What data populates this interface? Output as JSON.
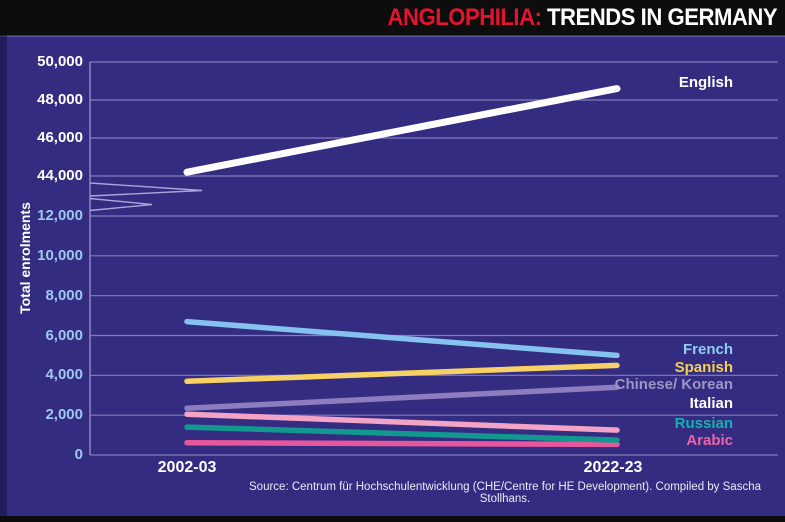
{
  "header": {
    "brand": "ANGLOPHILIA:",
    "title": "TRENDS IN GERMANY"
  },
  "chart_data": {
    "type": "line",
    "title": "ANGLOPHILIA: TRENDS IN GERMANY",
    "ylabel": "Total enrolments",
    "x_categories": [
      "2002-03",
      "2022-23"
    ],
    "axis_break": {
      "between": [
        12000,
        44000
      ]
    },
    "y_axis": {
      "upper_ticks": [
        {
          "value": 50000,
          "label": "50,000"
        },
        {
          "value": 48000,
          "label": "48,000"
        },
        {
          "value": 46000,
          "label": "46,000"
        },
        {
          "value": 44000,
          "label": "44,000"
        }
      ],
      "lower_ticks": [
        {
          "value": 12000,
          "label": "12,000"
        },
        {
          "value": 10000,
          "label": "10,000"
        },
        {
          "value": 8000,
          "label": "8,000"
        },
        {
          "value": 6000,
          "label": "6,000"
        },
        {
          "value": 4000,
          "label": "4,000"
        },
        {
          "value": 2000,
          "label": "2,000"
        },
        {
          "value": 0,
          "label": "0"
        }
      ]
    },
    "series": [
      {
        "name": "English",
        "values": [
          44200,
          48600
        ],
        "color": "#ffffff",
        "label_color": "#ffffff"
      },
      {
        "name": "French",
        "values": [
          6700,
          5000
        ],
        "color": "#85c2f0",
        "label_color": "#8ecdf4"
      },
      {
        "name": "Spanish",
        "values": [
          3700,
          4500
        ],
        "color": "#f7d165",
        "label_color": "#f3d056"
      },
      {
        "name": "Chinese/ Korean",
        "values": [
          2350,
          3400
        ],
        "color": "#8d7dbe",
        "label_color": "#9e96c6"
      },
      {
        "name": "Italian",
        "values": [
          2050,
          1250
        ],
        "color": "#f2a3c6",
        "label_color": "#ffffff"
      },
      {
        "name": "Russian",
        "values": [
          1400,
          750
        ],
        "color": "#12998f",
        "label_color": "#13b3ad"
      },
      {
        "name": "Arabic",
        "values": [
          620,
          530
        ],
        "color": "#e6579d",
        "label_color": "#ee64aa"
      }
    ],
    "source": "Source: Centrum für Hochschulentwicklung (CHE/Centre for HE Development). Compiled by Sascha Stollhans.",
    "legend_position": "right-of-line-ends",
    "grid": true
  },
  "colors": {
    "background": "#332c80",
    "panel_black": "#0d0d0d",
    "grid": "#8b85c4",
    "brand_red": "#e4142e",
    "upper_tick_color": "#ffffff",
    "lower_tick_color": "#9fc8f0"
  }
}
